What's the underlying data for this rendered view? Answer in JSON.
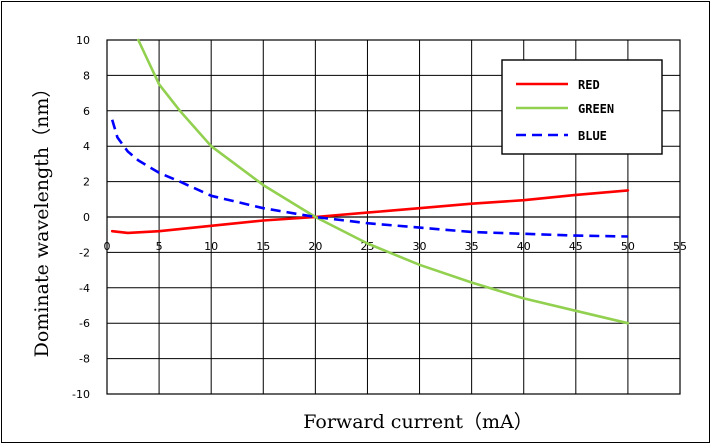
{
  "chart_data": {
    "type": "line",
    "title": "",
    "xlabel": "Forward current（mA）",
    "ylabel": "Dominate wavelength（nm）",
    "xlim": [
      0,
      55
    ],
    "ylim": [
      -10,
      10
    ],
    "x_ticks": [
      "0",
      "5",
      "10",
      "15",
      "20",
      "25",
      "30",
      "35",
      "40",
      "45",
      "50",
      "55"
    ],
    "y_ticks": [
      "10",
      "8",
      "6",
      "4",
      "2",
      "0",
      "-2",
      "-4",
      "-6",
      "-8",
      "-10"
    ],
    "grid": true,
    "legend_position": "top-right",
    "series": [
      {
        "name": "RED",
        "color": "#ff0000",
        "dash": "solid",
        "x": [
          0.5,
          2,
          5,
          10,
          15,
          20,
          25,
          30,
          35,
          40,
          45,
          50
        ],
        "y": [
          -0.8,
          -0.9,
          -0.8,
          -0.5,
          -0.2,
          0,
          0.25,
          0.5,
          0.75,
          0.95,
          1.25,
          1.5
        ]
      },
      {
        "name": "GREEN",
        "color": "#92d050",
        "dash": "solid",
        "x": [
          3,
          5,
          7,
          10,
          15,
          20,
          25,
          30,
          35,
          40,
          45,
          50
        ],
        "y": [
          10,
          7.5,
          6,
          4,
          1.8,
          0,
          -1.5,
          -2.7,
          -3.7,
          -4.6,
          -5.3,
          -6
        ]
      },
      {
        "name": "BLUE",
        "color": "#0000ff",
        "dash": "dashed",
        "x": [
          0.5,
          1,
          2,
          3,
          5,
          7,
          10,
          15,
          20,
          25,
          30,
          35,
          40,
          45,
          50
        ],
        "y": [
          5.5,
          4.5,
          3.7,
          3.2,
          2.5,
          2,
          1.2,
          0.5,
          0,
          -0.35,
          -0.6,
          -0.85,
          -0.95,
          -1.05,
          -1.1
        ]
      }
    ]
  }
}
